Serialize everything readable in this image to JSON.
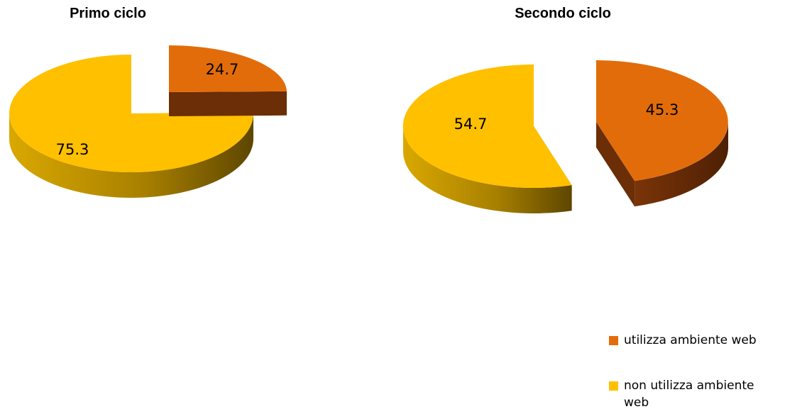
{
  "chart_data": [
    {
      "type": "pie",
      "title": "Primo ciclo",
      "slices": [
        {
          "label": "utilizza ambiente web",
          "value": 24.7,
          "display": "24.7"
        },
        {
          "label": "non utilizza ambiente web",
          "value": 75.3,
          "display": "75.3"
        }
      ]
    },
    {
      "type": "pie",
      "title": "Secondo ciclo",
      "slices": [
        {
          "label": "utilizza ambiente web",
          "value": 45.3,
          "display": "45.3"
        },
        {
          "label": "non utilizza ambiente web",
          "value": 54.7,
          "display": "54.7"
        }
      ]
    }
  ],
  "legend": {
    "placement": "bottom-right",
    "items": [
      {
        "label": "utilizza ambiente web",
        "color": "#E36C0A"
      },
      {
        "label": "non utilizza ambiente web",
        "color": "#FFC000"
      }
    ]
  },
  "colors": {
    "orange": "#E36C0A",
    "orange_side": "#6B2E06",
    "yellow": "#FFC000",
    "yellow_side_light": "#D4A200",
    "yellow_side_dark": "#6B5000"
  }
}
